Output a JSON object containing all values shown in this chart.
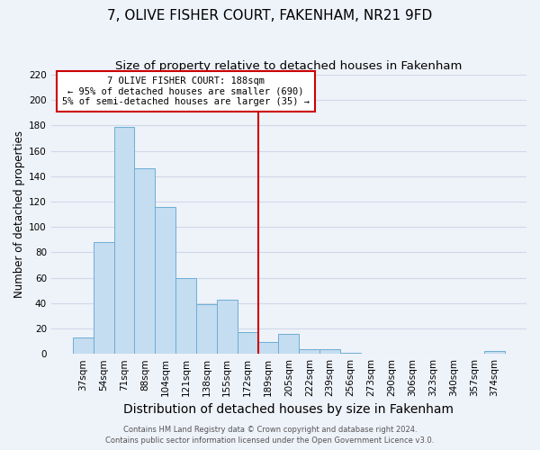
{
  "title": "7, OLIVE FISHER COURT, FAKENHAM, NR21 9FD",
  "subtitle": "Size of property relative to detached houses in Fakenham",
  "xlabel": "Distribution of detached houses by size in Fakenham",
  "ylabel": "Number of detached properties",
  "bar_labels": [
    "37sqm",
    "54sqm",
    "71sqm",
    "88sqm",
    "104sqm",
    "121sqm",
    "138sqm",
    "155sqm",
    "172sqm",
    "189sqm",
    "205sqm",
    "222sqm",
    "239sqm",
    "256sqm",
    "273sqm",
    "290sqm",
    "306sqm",
    "323sqm",
    "340sqm",
    "357sqm",
    "374sqm"
  ],
  "bar_values": [
    13,
    88,
    179,
    146,
    116,
    60,
    39,
    43,
    17,
    9,
    16,
    4,
    4,
    1,
    0,
    0,
    0,
    0,
    0,
    0,
    2
  ],
  "bar_color": "#c5ddf0",
  "bar_edge_color": "#6baed6",
  "vline_color": "#cc0000",
  "ylim": [
    0,
    220
  ],
  "yticks": [
    0,
    20,
    40,
    60,
    80,
    100,
    120,
    140,
    160,
    180,
    200,
    220
  ],
  "annotation_title": "7 OLIVE FISHER COURT: 188sqm",
  "annotation_line1": "← 95% of detached houses are smaller (690)",
  "annotation_line2": "5% of semi-detached houses are larger (35) →",
  "footer_line1": "Contains HM Land Registry data © Crown copyright and database right 2024.",
  "footer_line2": "Contains public sector information licensed under the Open Government Licence v3.0.",
  "background_color": "#eef2f9",
  "grid_color": "#d0d8e8",
  "title_fontsize": 11,
  "subtitle_fontsize": 9.5,
  "xlabel_fontsize": 10,
  "ylabel_fontsize": 8.5,
  "tick_fontsize": 7.5,
  "footer_fontsize": 6.0
}
